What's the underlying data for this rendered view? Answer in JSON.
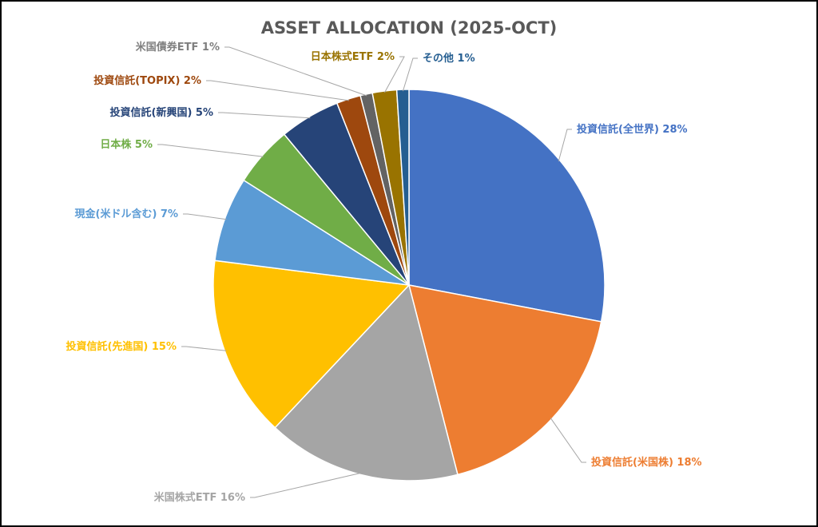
{
  "chart_data": {
    "type": "pie",
    "title": "ASSET ALLOCATION (2025-OCT)",
    "slices": [
      {
        "label": "投資信託(全世界)",
        "value": 28,
        "color": "#4472C4",
        "label_color": "#4472C4",
        "data_label": "投資信託(全世界) 28%"
      },
      {
        "label": "投資信託(米国株)",
        "value": 18,
        "color": "#ED7D31",
        "label_color": "#ED7D31",
        "data_label": "投資信託(米国株) 18%"
      },
      {
        "label": "米国株式ETF",
        "value": 16,
        "color": "#A5A5A5",
        "label_color": "#A5A5A5",
        "data_label": "米国株式ETF 16%"
      },
      {
        "label": "投資信託(先進国)",
        "value": 15,
        "color": "#FFC000",
        "label_color": "#FFC000",
        "data_label": "投資信託(先進国) 15%"
      },
      {
        "label": "現金(米ドル含む)",
        "value": 7,
        "color": "#5B9BD5",
        "label_color": "#5B9BD5",
        "data_label": "現金(米ドル含む) 7%"
      },
      {
        "label": "日本株",
        "value": 5,
        "color": "#70AD47",
        "label_color": "#70AD47",
        "data_label": "日本株 5%"
      },
      {
        "label": "投資信託(新興国)",
        "value": 5,
        "color": "#264478",
        "label_color": "#264478",
        "data_label": "投資信託(新興国) 5%"
      },
      {
        "label": "投資信託(TOPIX)",
        "value": 2,
        "color": "#9E480E",
        "label_color": "#9E480E",
        "data_label": "投資信託(TOPIX) 2%"
      },
      {
        "label": "米国債券ETF",
        "value": 1,
        "color": "#636363",
        "label_color": "#7F7F7F",
        "data_label": "米国債券ETF 1%"
      },
      {
        "label": "日本株式ETF",
        "value": 2,
        "color": "#997300",
        "label_color": "#997300",
        "data_label": "日本株式ETF 2%"
      },
      {
        "label": "その他",
        "value": 1,
        "color": "#255E91",
        "label_color": "#255E91",
        "data_label": "その他 1%"
      }
    ],
    "legend": "none",
    "border_color": "#000000",
    "leader_line_color": "#A6A6A6"
  }
}
